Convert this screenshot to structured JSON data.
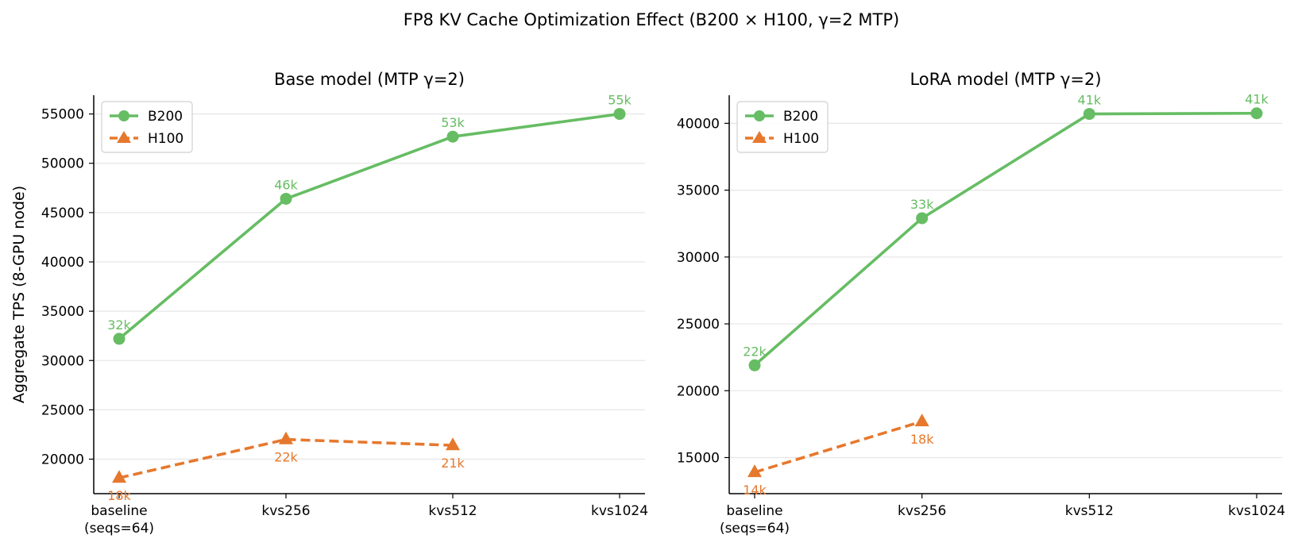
{
  "figure": {
    "title": "FP8 KV Cache Optimization Effect  (B200 × H100, γ=2 MTP)"
  },
  "colors": {
    "B200": "#66bd63",
    "H100": "#e6782d",
    "grid": "#e6e6e6",
    "axis": "#000000"
  },
  "chart_data": [
    {
      "type": "line",
      "title": "Base model  (MTP γ=2)",
      "ylabel": "Aggregate TPS (8-GPU node)",
      "xlabel": "",
      "categories": [
        "baseline\n(seqs=64)",
        "kvs256",
        "kvs512",
        "kvs1024"
      ],
      "ylim": [
        16500,
        56900
      ],
      "yticks": [
        20000,
        25000,
        30000,
        35000,
        40000,
        45000,
        50000,
        55000
      ],
      "grid": "horizontal",
      "legend": "top-left",
      "series": [
        {
          "name": "B200",
          "marker": "circle",
          "linestyle": "solid",
          "values": [
            32200,
            46400,
            52700,
            55000
          ],
          "labels": [
            "32k",
            "46k",
            "53k",
            "55k"
          ]
        },
        {
          "name": "H100",
          "marker": "triangle",
          "linestyle": "dashed",
          "values": [
            18100,
            22000,
            21400,
            null
          ],
          "labels": [
            "18k",
            "22k",
            "21k",
            null
          ]
        }
      ]
    },
    {
      "type": "line",
      "title": "LoRA model  (MTP γ=2)",
      "ylabel": "",
      "xlabel": "",
      "categories": [
        "baseline\n(seqs=64)",
        "kvs256",
        "kvs512",
        "kvs1024"
      ],
      "ylim": [
        12300,
        42100
      ],
      "yticks": [
        15000,
        20000,
        25000,
        30000,
        35000,
        40000
      ],
      "grid": "horizontal",
      "legend": "top-left",
      "series": [
        {
          "name": "B200",
          "marker": "circle",
          "linestyle": "solid",
          "values": [
            21900,
            32900,
            40700,
            40750
          ],
          "labels": [
            "22k",
            "33k",
            "41k",
            "41k"
          ]
        },
        {
          "name": "H100",
          "marker": "triangle",
          "linestyle": "dashed",
          "values": [
            13900,
            17700,
            null,
            null
          ],
          "labels": [
            "14k",
            "18k",
            null,
            null
          ]
        }
      ]
    }
  ]
}
